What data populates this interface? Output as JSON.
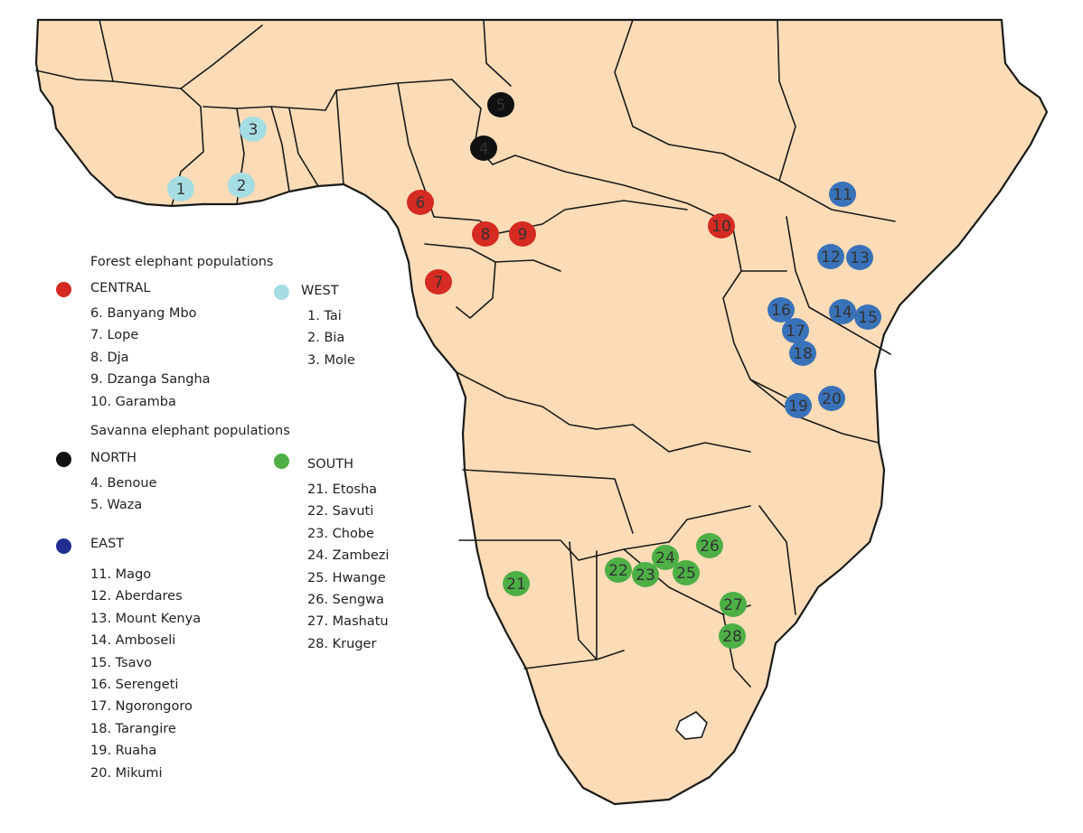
{
  "map": {
    "land_color": "#fbdcb6",
    "border_color": "#1a1a1a",
    "colors": {
      "central": "#d52b22",
      "west": "#a6dde3",
      "north": "#111111",
      "east": "#3a72b9",
      "south": "#4daf45",
      "east_legend": "#1f2e8f"
    }
  },
  "legend": {
    "forest_heading": "Forest elephant populations",
    "savanna_heading": "Savanna elephant populations",
    "central": {
      "label": "CENTRAL",
      "items": [
        "6. Banyang Mbo",
        "7. Lope",
        "8. Dja",
        "9. Dzanga Sangha",
        "10. Garamba"
      ]
    },
    "west": {
      "label": "WEST",
      "items": [
        "1. Tai",
        "2. Bia",
        "3. Mole"
      ]
    },
    "north": {
      "label": "NORTH",
      "items": [
        "4. Benoue",
        "5. Waza"
      ]
    },
    "east": {
      "label": "EAST",
      "items": [
        "11. Mago",
        "12. Aberdares",
        "13. Mount Kenya",
        "14. Amboseli",
        "15. Tsavo",
        "16. Serengeti",
        "17. Ngorongoro",
        "18. Tarangire",
        "19. Ruaha",
        "20. Mikumi"
      ]
    },
    "south": {
      "label": "SOUTH",
      "items": [
        "21. Etosha",
        "22. Savuti",
        "23. Chobe",
        "24. Zambezi",
        "25. Hwange",
        "26. Sengwa",
        "27. Mashatu",
        "28. Kruger"
      ]
    }
  },
  "markers": [
    {
      "id": "1",
      "label": "1",
      "group": "west"
    },
    {
      "id": "2",
      "label": "2",
      "group": "west"
    },
    {
      "id": "3",
      "label": "3",
      "group": "west"
    },
    {
      "id": "4",
      "label": "4",
      "group": "north"
    },
    {
      "id": "5",
      "label": "5",
      "group": "north"
    },
    {
      "id": "6",
      "label": "6",
      "group": "central"
    },
    {
      "id": "7",
      "label": "7",
      "group": "central"
    },
    {
      "id": "8",
      "label": "8",
      "group": "central"
    },
    {
      "id": "9",
      "label": "9",
      "group": "central"
    },
    {
      "id": "10",
      "label": "10",
      "group": "central"
    },
    {
      "id": "11",
      "label": "11",
      "group": "east"
    },
    {
      "id": "12",
      "label": "12",
      "group": "east"
    },
    {
      "id": "13",
      "label": "13",
      "group": "east"
    },
    {
      "id": "14",
      "label": "14",
      "group": "east"
    },
    {
      "id": "15",
      "label": "15",
      "group": "east"
    },
    {
      "id": "16",
      "label": "16",
      "group": "east"
    },
    {
      "id": "17",
      "label": "17",
      "group": "east"
    },
    {
      "id": "18",
      "label": "18",
      "group": "east"
    },
    {
      "id": "19",
      "label": "19",
      "group": "east"
    },
    {
      "id": "20",
      "label": "20",
      "group": "east"
    },
    {
      "id": "21",
      "label": "21",
      "group": "south"
    },
    {
      "id": "22",
      "label": "22",
      "group": "south"
    },
    {
      "id": "23",
      "label": "23",
      "group": "south"
    },
    {
      "id": "24",
      "label": "24",
      "group": "south"
    },
    {
      "id": "25",
      "label": "25",
      "group": "south"
    },
    {
      "id": "26",
      "label": "26",
      "group": "south"
    },
    {
      "id": "27",
      "label": "27",
      "group": "south"
    },
    {
      "id": "28",
      "label": "28",
      "group": "south"
    }
  ]
}
